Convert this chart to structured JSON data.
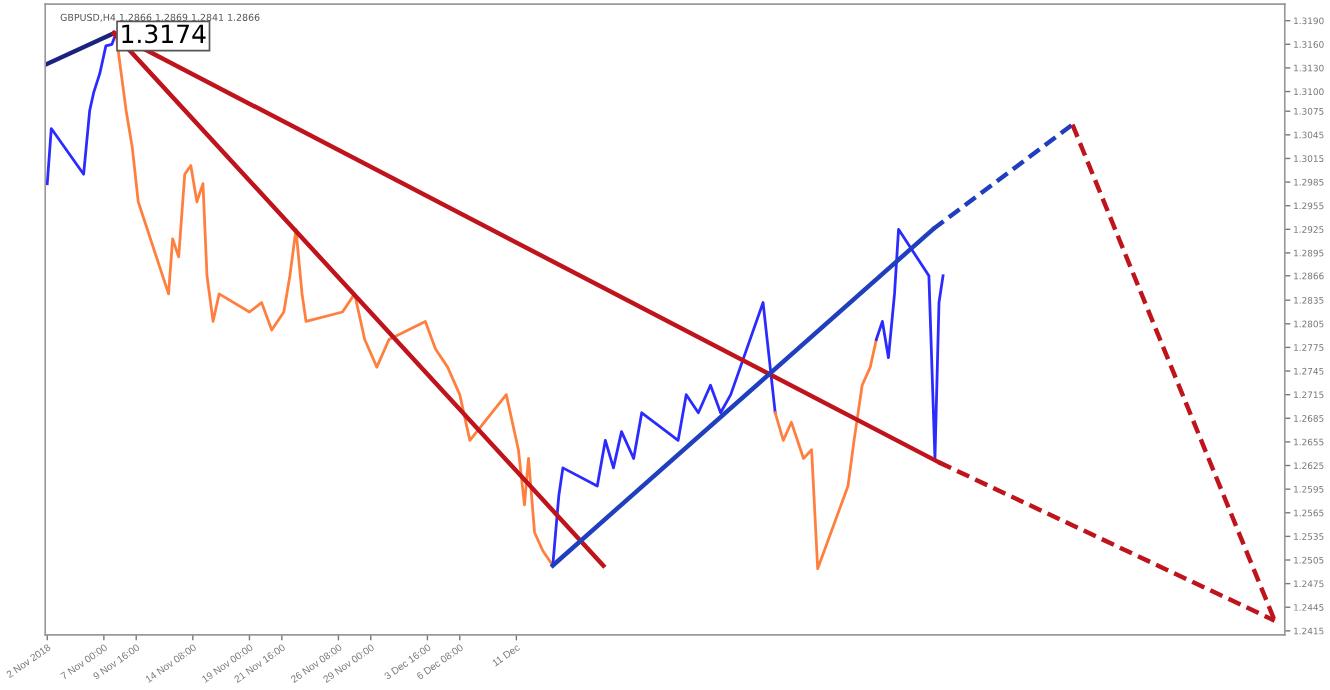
{
  "chart_data": {
    "type": "line",
    "title": "GBPUSD,H4 1.2866 1.2869 1.2841 1.2866",
    "xlim": [
      "2018-11-02T04:00",
      "2019-02-12T08:00"
    ],
    "ylim": [
      1.241,
      1.3211
    ],
    "xticks": [
      {
        "value": "2018-11-02T08:00",
        "label": "2 Nov 2018"
      },
      {
        "value": "2018-11-07T00:00",
        "label": "7 Nov 00:00"
      },
      {
        "value": "2018-11-09T16:00",
        "label": "9 Nov 16:00"
      },
      {
        "value": "2018-11-14T08:00",
        "label": "14 Nov 08:00"
      },
      {
        "value": "2018-11-19T00:00",
        "label": "19 Nov 00:00"
      },
      {
        "value": "2018-11-21T16:00",
        "label": "21 Nov 16:00"
      },
      {
        "value": "2018-11-26T08:00",
        "label": "26 Nov 08:00"
      },
      {
        "value": "2018-11-29T00:00",
        "label": "29 Nov 00:00"
      },
      {
        "value": "2018-12-03T16:00",
        "label": "3 Dec 16:00"
      },
      {
        "value": "2018-12-06T08:00",
        "label": "6 Dec 08:00"
      },
      {
        "value": "2018-12-11T00:00",
        "label": "11 Dec"
      }
    ],
    "yticks": [
      {
        "value": 1.319,
        "label": "1.3190"
      },
      {
        "value": 1.316,
        "label": "1.3160"
      },
      {
        "value": 1.313,
        "label": "1.3130"
      },
      {
        "value": 1.31,
        "label": "1.3100"
      },
      1.3075,
      1.3045,
      1.3015,
      1.2985,
      1.2955,
      1.2925,
      1.2895,
      1.2866,
      1.2835,
      1.2805,
      1.2775,
      1.2745,
      1.2715,
      1.2685,
      1.2655,
      1.2625,
      1.2595,
      1.2565,
      1.2535,
      1.2505,
      1.2475,
      1.2445,
      1.2415
    ],
    "annotations": [
      {
        "text": "1.3174",
        "x": "2018-11-07T20:00",
        "y": 1.3174
      }
    ],
    "series": [
      {
        "color": "#2b2bff",
        "x": [
          "2018-11-02T08:00",
          "2018-11-02T16:00",
          "2018-11-05T08:00",
          "2018-11-05T20:00",
          "2018-11-06T04:00",
          "2018-11-06T16:00",
          "2018-11-07T04:00",
          "2018-11-07T16:00",
          "2018-11-08T00:00"
        ],
        "values": [
          1.2983,
          1.3053,
          1.2995,
          1.3076,
          1.3099,
          1.3123,
          1.3158,
          1.316,
          1.3174
        ]
      },
      {
        "color": "#ff7f3f",
        "x": [
          "2018-11-08T00:00",
          "2018-11-08T08:00",
          "2018-11-08T20:00",
          "2018-11-09T08:00",
          "2018-11-09T20:00",
          "2018-11-12T08:00",
          "2018-11-12T16:00",
          "2018-11-13T04:00",
          "2018-11-13T16:00",
          "2018-11-14T04:00",
          "2018-11-14T16:00",
          "2018-11-15T04:00",
          "2018-11-15T12:00",
          "2018-11-16T00:00",
          "2018-11-16T12:00",
          "2018-11-19T00:00",
          "2018-11-20T00:00",
          "2018-11-20T20:00",
          "2018-11-21T20:00",
          "2018-11-22T08:00",
          "2018-11-22T20:00",
          "2018-11-23T08:00",
          "2018-11-23T16:00",
          "2018-11-26T16:00",
          "2018-11-27T16:00",
          "2018-11-28T12:00",
          "2018-11-29T12:00",
          "2018-11-30T12:00",
          "2018-12-03T12:00",
          "2018-12-04T08:00",
          "2018-12-05T08:00",
          "2018-12-06T08:00",
          "2018-12-07T04:00",
          "2018-12-10T04:00",
          "2018-12-11T04:00",
          "2018-12-11T16:00",
          "2018-12-12T00:00",
          "2018-12-12T12:00",
          "2018-12-13T04:00",
          "2018-12-14T00:00"
        ],
        "values": [
          1.3174,
          1.3134,
          1.3076,
          1.303,
          1.296,
          1.2843,
          1.2913,
          1.289,
          1.2995,
          1.3006,
          1.296,
          1.2983,
          1.2866,
          1.2808,
          1.2843,
          1.282,
          1.2832,
          1.2797,
          1.282,
          1.2866,
          1.2925,
          1.2843,
          1.2808,
          1.282,
          1.2843,
          1.2785,
          1.275,
          1.2785,
          1.2808,
          1.2773,
          1.275,
          1.2715,
          1.2657,
          1.2715,
          1.2645,
          1.2575,
          1.2634,
          1.254,
          1.2517,
          1.2498
        ]
      },
      {
        "color": "#2b2bff",
        "x": [
          "2018-12-14T00:00",
          "2018-12-14T12:00",
          "2018-12-14T20:00",
          "2018-12-17T16:00",
          "2018-12-18T08:00",
          "2018-12-19T00:00",
          "2018-12-19T16:00",
          "2018-12-20T16:00",
          "2018-12-21T08:00",
          "2018-12-24T08:00",
          "2018-12-25T00:00",
          "2018-12-26T00:00",
          "2018-12-27T00:00",
          "2018-12-27T20:00",
          "2018-12-28T16:00",
          "2018-12-31T08:00",
          "2018-12-31T20:00",
          "2019-01-01T08:00"
        ],
        "values": [
          1.2498,
          1.2587,
          1.2622,
          1.2599,
          1.2657,
          1.2622,
          1.2668,
          1.2634,
          1.2692,
          1.2657,
          1.2715,
          1.2692,
          1.2727,
          1.2692,
          1.2715,
          1.2832,
          1.2762,
          1.2692
        ]
      },
      {
        "color": "#ff7f3f",
        "x": [
          "2019-01-01T08:00",
          "2019-01-02T00:00",
          "2019-01-02T16:00",
          "2019-01-03T16:00",
          "2019-01-04T08:00",
          "2019-01-04T20:00",
          "2019-01-07T08:00",
          "2019-01-07T20:00",
          "2019-01-08T12:00",
          "2019-01-09T04:00",
          "2019-01-09T16:00"
        ],
        "values": [
          1.2692,
          1.2657,
          1.268,
          1.2634,
          1.2645,
          1.2494,
          1.2599,
          1.2657,
          1.2727,
          1.275,
          1.2785
        ]
      },
      {
        "color": "#2b2bff",
        "x": [
          "2019-01-09T16:00",
          "2019-01-10T04:00",
          "2019-01-10T16:00",
          "2019-01-11T04:00",
          "2019-01-11T12:00",
          "2019-01-14T00:00",
          "2019-01-14T12:00",
          "2019-01-14T20:00",
          "2019-01-15T04:00"
        ],
        "values": [
          1.2785,
          1.2808,
          1.2762,
          1.2843,
          1.2925,
          1.2866,
          1.2634,
          1.2832,
          1.2866
        ]
      },
      {
        "color": "#1a237e",
        "x": [
          "2018-11-02T04:00",
          "2018-11-07T20:00"
        ],
        "values": [
          1.3134,
          1.3174
        ]
      },
      {
        "color": "#c0141c",
        "x": [
          "2018-11-07T20:00",
          "2018-12-18T04:00"
        ],
        "values": [
          1.3174,
          1.2498
        ]
      },
      {
        "color": "#c0141c",
        "x": [
          "2018-11-07T20:00",
          "2019-01-14T20:00"
        ],
        "values": [
          1.3174,
          1.2629
        ]
      },
      {
        "color": "#c0141c",
        "line_style": "dashed",
        "x": [
          "2019-01-14T20:00",
          "2019-02-11T12:00"
        ],
        "values": [
          1.2629,
          1.2428
        ]
      },
      {
        "color": "#1f3fbf",
        "x": [
          "2018-12-14T00:00",
          "2019-01-14T08:00"
        ],
        "values": [
          1.2498,
          1.2925
        ]
      },
      {
        "color": "#1f3fbf",
        "line_style": "dashed",
        "x": [
          "2019-01-14T08:00",
          "2019-01-25T20:00"
        ],
        "values": [
          1.2925,
          1.3058
        ]
      },
      {
        "color": "#c0141c",
        "line_style": "dashed",
        "x": [
          "2019-01-25T20:00",
          "2019-02-11T12:00"
        ],
        "values": [
          1.3058,
          1.2428
        ]
      }
    ]
  }
}
